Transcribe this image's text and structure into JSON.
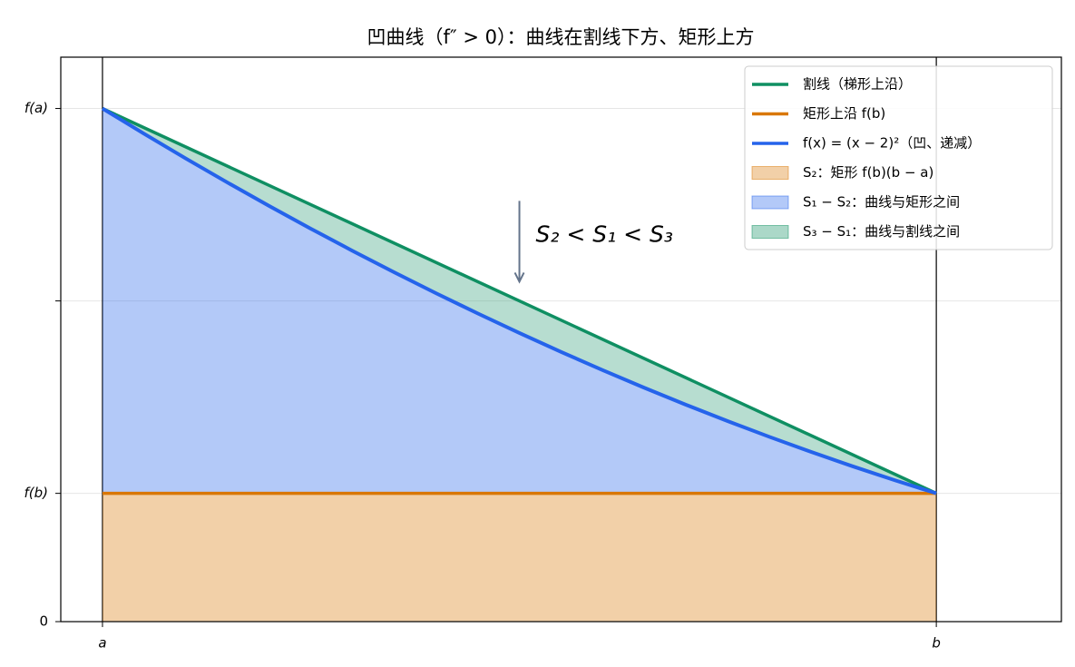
{
  "chart_data": {
    "type": "line",
    "title": "凹曲线（f″ > 0）：曲线在割线下方、矩形上方",
    "xlim": [
      -0.05,
      1.15
    ],
    "ylim": [
      0,
      4.4
    ],
    "xticks": [
      {
        "value": 0,
        "label": "a"
      },
      {
        "value": 1,
        "label": "b"
      }
    ],
    "yticks": [
      0,
      {
        "value": 1,
        "label": "f(b)"
      },
      {
        "value": 2.5,
        "label": null
      },
      {
        "value": 4,
        "label": "f(a)"
      }
    ],
    "grid": true,
    "legend": "upper right",
    "series": [
      {
        "name": "割线（梯形上沿）",
        "color": "#0f8f62",
        "x": [
          0,
          1
        ],
        "values": [
          4,
          1
        ]
      },
      {
        "name": "矩形上沿 f(b)",
        "color": "#d97706",
        "x": [
          0,
          1
        ],
        "values": [
          1,
          1
        ]
      },
      {
        "name": "f(x) = (x − 2)²（凹、递减）",
        "color": "#2563eb",
        "x": [
          0,
          0.05,
          0.1,
          0.15,
          0.2,
          0.25,
          0.3,
          0.35,
          0.4,
          0.45,
          0.5,
          0.55,
          0.6,
          0.65,
          0.7,
          0.75,
          0.8,
          0.85,
          0.9,
          0.95,
          1
        ],
        "values": [
          4,
          3.8025,
          3.61,
          3.4225,
          3.24,
          3.0625,
          2.89,
          2.7225,
          2.56,
          2.4025,
          2.25,
          2.1025,
          1.96,
          1.8225,
          1.69,
          1.5625,
          1.44,
          1.3225,
          1.21,
          1.1025,
          1
        ]
      }
    ],
    "areas": [
      {
        "name": "S₂：矩形 f(b)(b − a)",
        "color": "#d97706"
      },
      {
        "name": "S₁ − S₂：曲线与矩形之间",
        "color": "#2563eb"
      },
      {
        "name": "S₃ − S₁：曲线与割线之间",
        "color": "#0f8f62"
      }
    ],
    "annotation": {
      "text": "S₂ < S₁ < S₃",
      "color": "#dc2626",
      "arrow_x": 0.5,
      "arrow_from": 3.28,
      "arrow_to": 2.65
    }
  }
}
